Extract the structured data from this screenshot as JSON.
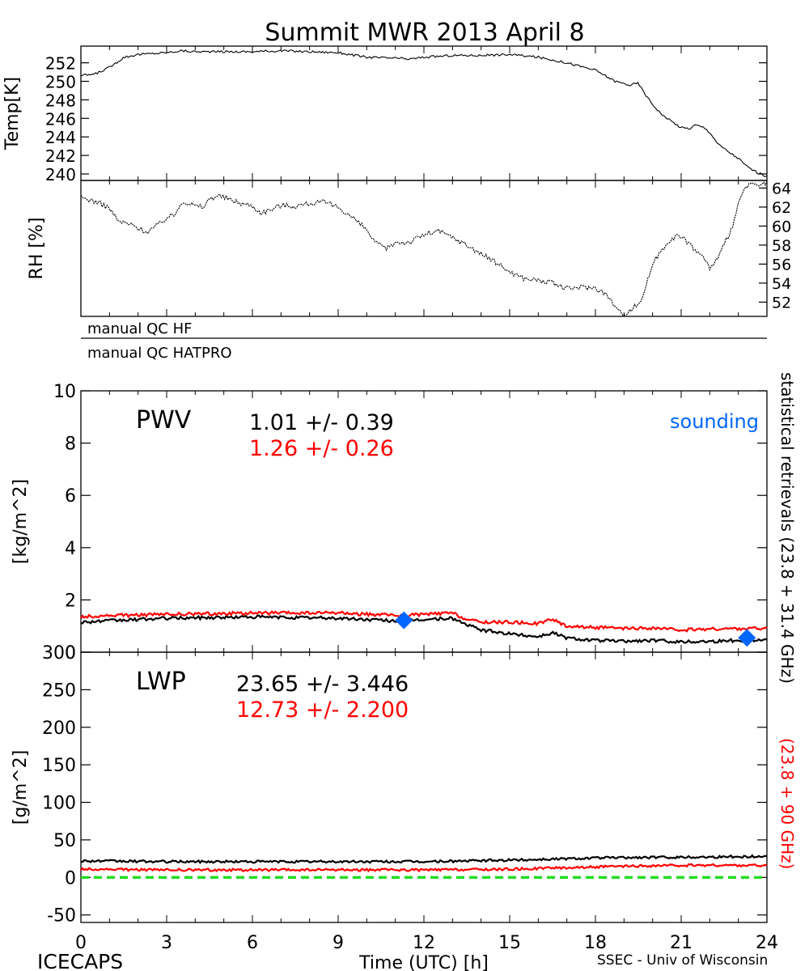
{
  "title": "Summit MWR 2013 April  8",
  "footer": {
    "left": "ICECAPS",
    "right": "SSEC - Univ of Wisconsin"
  },
  "colors": {
    "hf": "#000000",
    "hatpro": "#ff0000",
    "sounding": "#0066ff",
    "zero_line": "#22dd22"
  },
  "qc": {
    "hf": "manual  QC  HF",
    "hatpro": "manual  QC  HATPRO"
  },
  "side_labels": {
    "black": "statistical  retrievals  (23.8 + 31.4 GHz)",
    "red": "(23.8 + 90 GHz)"
  },
  "chart_data": [
    {
      "type": "line",
      "name": "temp",
      "ylabel": "Temp[K]",
      "ylim": [
        239.3,
        253.8
      ],
      "yticks": [
        240,
        242,
        244,
        246,
        248,
        250,
        252
      ],
      "xlim": [
        0,
        24
      ],
      "series": [
        {
          "points": [
            [
              0,
              250.6
            ],
            [
              0.5,
              250.8
            ],
            [
              1,
              251.5
            ],
            [
              1.5,
              252.6
            ],
            [
              2,
              252.9
            ],
            [
              2.5,
              253.0
            ],
            [
              3,
              253.1
            ],
            [
              3.5,
              253.3
            ],
            [
              4,
              253.2
            ],
            [
              5,
              253.2
            ],
            [
              6,
              253.2
            ],
            [
              7,
              253.3
            ],
            [
              8,
              253.2
            ],
            [
              9,
              253.1
            ],
            [
              10,
              252.6
            ],
            [
              11,
              252.5
            ],
            [
              11.5,
              252.4
            ],
            [
              12,
              252.6
            ],
            [
              13,
              252.8
            ],
            [
              14,
              252.8
            ],
            [
              15,
              252.9
            ],
            [
              16,
              252.6
            ],
            [
              17,
              252.0
            ],
            [
              18,
              251.2
            ],
            [
              18.7,
              250.0
            ],
            [
              19.2,
              249.6
            ],
            [
              19.5,
              249.8
            ],
            [
              19.7,
              248.8
            ],
            [
              20,
              247.5
            ],
            [
              20.4,
              246.2
            ],
            [
              21,
              245.0
            ],
            [
              21.3,
              244.9
            ],
            [
              21.5,
              245.3
            ],
            [
              21.8,
              245.0
            ],
            [
              22,
              244.5
            ],
            [
              22.3,
              243.2
            ],
            [
              22.7,
              242.3
            ],
            [
              23,
              241.7
            ],
            [
              23.3,
              240.8
            ],
            [
              23.7,
              240.1
            ],
            [
              24,
              239.7
            ]
          ]
        }
      ]
    },
    {
      "type": "line",
      "name": "rh",
      "ylabel": "RH [%]",
      "ylim": [
        50.5,
        64.8
      ],
      "yticks": [
        52,
        54,
        56,
        58,
        60,
        62,
        64
      ],
      "xlim": [
        0,
        24
      ],
      "series": [
        {
          "points": [
            [
              0,
              63.0
            ],
            [
              0.5,
              62.6
            ],
            [
              1,
              61.9
            ],
            [
              1.3,
              60.5
            ],
            [
              1.7,
              60.2
            ],
            [
              2,
              59.8
            ],
            [
              2.3,
              59.4
            ],
            [
              2.7,
              60.1
            ],
            [
              3,
              60.9
            ],
            [
              3.3,
              61.2
            ],
            [
              3.5,
              62.6
            ],
            [
              3.8,
              62.4
            ],
            [
              4,
              62.1
            ],
            [
              4.3,
              62.0
            ],
            [
              4.5,
              62.9
            ],
            [
              4.8,
              63.2
            ],
            [
              5,
              63.0
            ],
            [
              5.5,
              62.5
            ],
            [
              6,
              62.1
            ],
            [
              6.3,
              61.4
            ],
            [
              6.7,
              61.8
            ],
            [
              7,
              62.2
            ],
            [
              7.5,
              62.1
            ],
            [
              8,
              62.4
            ],
            [
              8.5,
              62.5
            ],
            [
              9,
              62.0
            ],
            [
              9.5,
              60.9
            ],
            [
              10,
              59.6
            ],
            [
              10.3,
              58.2
            ],
            [
              10.7,
              57.6
            ],
            [
              11,
              58.3
            ],
            [
              11.5,
              58.3
            ],
            [
              12,
              59.1
            ],
            [
              12.5,
              59.5
            ],
            [
              13,
              58.8
            ],
            [
              13.5,
              58.0
            ],
            [
              14,
              57.1
            ],
            [
              14.5,
              56.2
            ],
            [
              15,
              55.2
            ],
            [
              15.5,
              54.5
            ],
            [
              16,
              54.3
            ],
            [
              16.5,
              54.0
            ],
            [
              17,
              53.4
            ],
            [
              17.5,
              53.6
            ],
            [
              18,
              53.5
            ],
            [
              18.3,
              53.0
            ],
            [
              18.6,
              52.0
            ],
            [
              18.8,
              51.0
            ],
            [
              19,
              50.8
            ],
            [
              19.3,
              51.3
            ],
            [
              19.6,
              52.2
            ],
            [
              19.8,
              54.0
            ],
            [
              20,
              56.0
            ],
            [
              20.3,
              57.4
            ],
            [
              20.6,
              58.6
            ],
            [
              20.9,
              59.0
            ],
            [
              21.2,
              58.4
            ],
            [
              21.5,
              57.5
            ],
            [
              21.8,
              56.6
            ],
            [
              22,
              55.6
            ],
            [
              22.3,
              56.6
            ],
            [
              22.5,
              58.0
            ],
            [
              22.8,
              60.0
            ],
            [
              23,
              62.2
            ],
            [
              23.2,
              64.0
            ],
            [
              23.5,
              64.4
            ],
            [
              23.8,
              64.2
            ],
            [
              24,
              64.6
            ]
          ]
        }
      ]
    },
    {
      "type": "line",
      "name": "pwv",
      "ylabel": "[kg/m^2]",
      "ylim": [
        0,
        10
      ],
      "yticks": [
        0,
        2,
        4,
        6,
        8,
        10
      ],
      "xlim": [
        0,
        24
      ],
      "label": "PWV",
      "stats": [
        {
          "text": "1.01  +/-   0.39",
          "color": "#000000"
        },
        {
          "text": "1.26  +/-   0.26",
          "color": "#ff0000"
        }
      ],
      "legend": "sounding",
      "series": [
        {
          "color": "#000000",
          "points": [
            [
              0,
              1.15
            ],
            [
              1,
              1.2
            ],
            [
              3,
              1.3
            ],
            [
              6,
              1.35
            ],
            [
              9,
              1.3
            ],
            [
              11,
              1.2
            ],
            [
              13,
              1.3
            ],
            [
              13.5,
              1.05
            ],
            [
              14,
              0.85
            ],
            [
              15,
              0.7
            ],
            [
              16,
              0.6
            ],
            [
              16.5,
              0.75
            ],
            [
              17,
              0.55
            ],
            [
              18,
              0.45
            ],
            [
              19,
              0.42
            ],
            [
              20,
              0.45
            ],
            [
              21,
              0.4
            ],
            [
              22,
              0.42
            ],
            [
              23,
              0.45
            ],
            [
              24,
              0.48
            ]
          ]
        },
        {
          "color": "#ff0000",
          "points": [
            [
              0,
              1.35
            ],
            [
              1,
              1.4
            ],
            [
              3,
              1.45
            ],
            [
              6,
              1.5
            ],
            [
              9,
              1.5
            ],
            [
              11,
              1.4
            ],
            [
              13,
              1.5
            ],
            [
              13.5,
              1.25
            ],
            [
              14,
              1.15
            ],
            [
              15,
              1.15
            ],
            [
              16,
              1.1
            ],
            [
              16.5,
              1.25
            ],
            [
              17,
              1.0
            ],
            [
              18,
              0.95
            ],
            [
              19,
              0.9
            ],
            [
              20,
              0.92
            ],
            [
              21,
              0.85
            ],
            [
              22,
              0.88
            ],
            [
              23,
              0.9
            ],
            [
              24,
              0.92
            ]
          ]
        }
      ],
      "sounding": [
        [
          11.3,
          1.22
        ],
        [
          23.3,
          0.55
        ]
      ]
    },
    {
      "type": "line",
      "name": "lwp",
      "ylabel": "[g/m^2]",
      "ylim": [
        -60,
        300
      ],
      "yticks": [
        -50,
        0,
        50,
        100,
        150,
        200,
        250,
        300
      ],
      "xlim": [
        0,
        24
      ],
      "xticks": [
        0,
        3,
        6,
        9,
        12,
        15,
        18,
        21,
        24
      ],
      "xlabel": "Time (UTC) [h]",
      "label": "LWP",
      "stats": [
        {
          "text": "23.65  +/-   3.446",
          "color": "#000000"
        },
        {
          "text": "12.73  +/-   2.200",
          "color": "#ff0000"
        }
      ],
      "zero_line": 0,
      "series": [
        {
          "color": "#000000",
          "points": [
            [
              0,
              22
            ],
            [
              3,
              21
            ],
            [
              6,
              21
            ],
            [
              9,
              21
            ],
            [
              12,
              21
            ],
            [
              15,
              23
            ],
            [
              18,
              26
            ],
            [
              21,
              27
            ],
            [
              24,
              28
            ]
          ]
        },
        {
          "color": "#ff0000",
          "points": [
            [
              0,
              11
            ],
            [
              3,
              10
            ],
            [
              6,
              10
            ],
            [
              9,
              10
            ],
            [
              12,
              10
            ],
            [
              15,
              11
            ],
            [
              18,
              14
            ],
            [
              21,
              16
            ],
            [
              24,
              16
            ]
          ]
        }
      ]
    }
  ]
}
